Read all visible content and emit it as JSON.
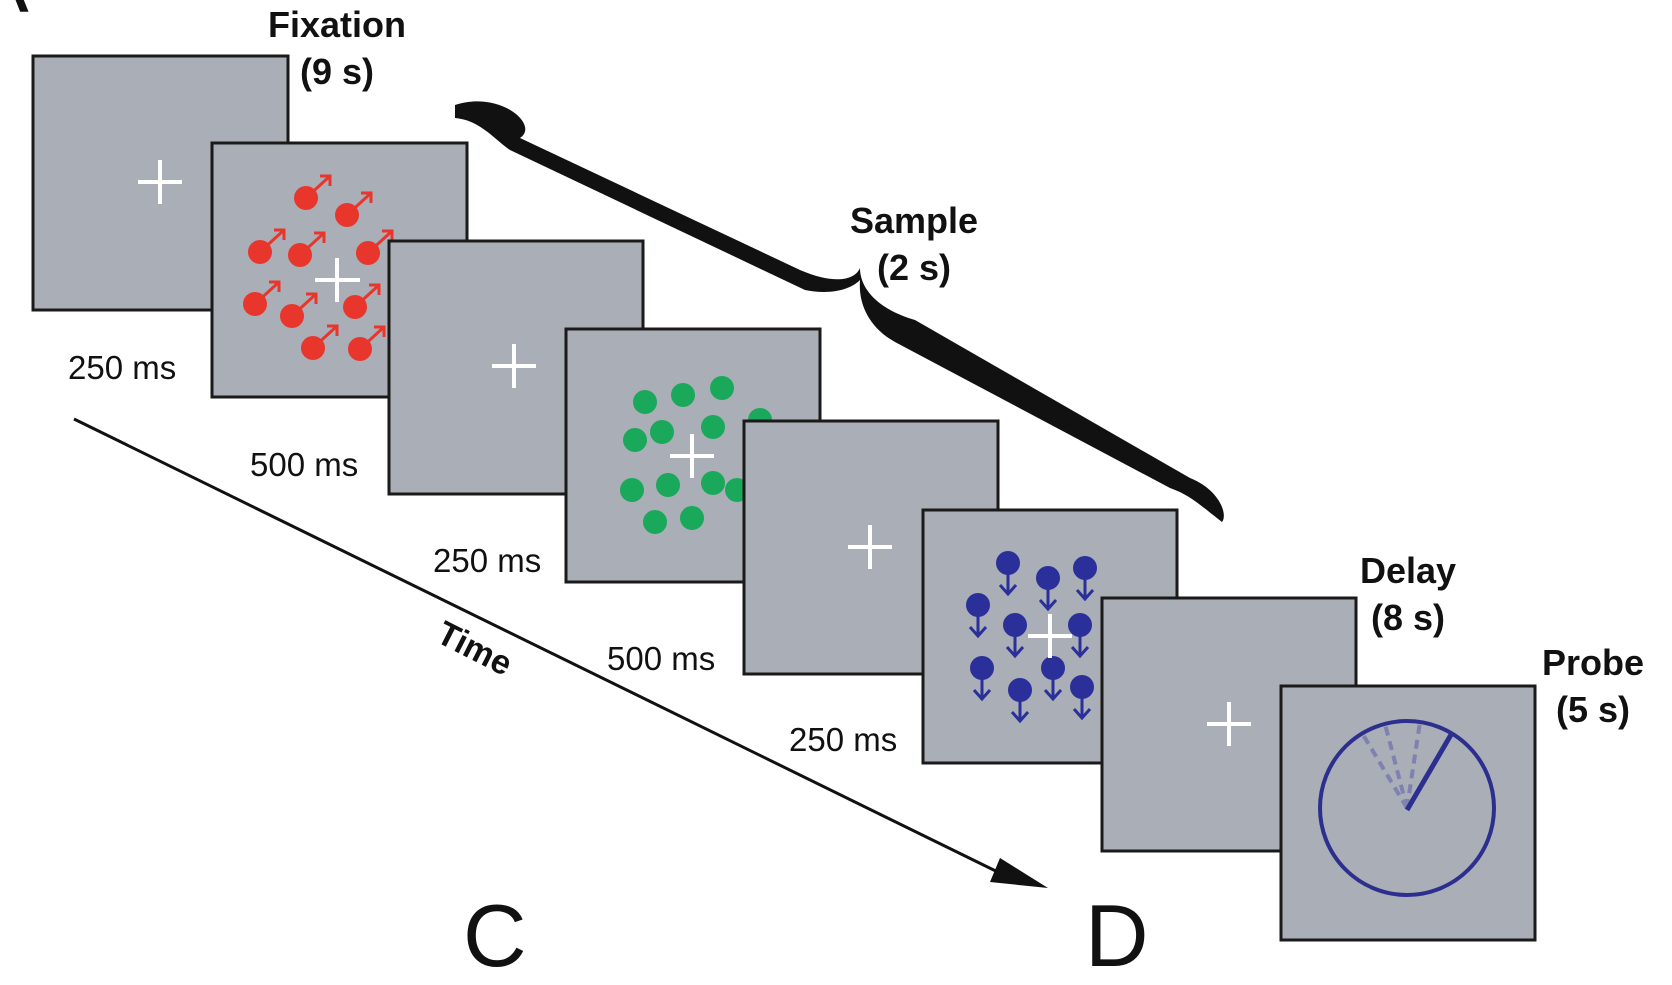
{
  "corner_letter": "A",
  "phases": {
    "fixation": {
      "name": "Fixation",
      "duration": "(9 s)"
    },
    "sample": {
      "name": "Sample",
      "duration": "(2 s)"
    },
    "delay": {
      "name": "Delay",
      "duration": "(8 s)"
    },
    "probe": {
      "name": "Probe",
      "duration": "(5 s)"
    }
  },
  "frame_durations": [
    "250 ms",
    "500 ms",
    "250 ms",
    "500 ms",
    "250 ms"
  ],
  "time_axis_label": "Time",
  "panel_letters": [
    "C",
    "D"
  ],
  "frames": [
    {
      "kind": "fixation-cross"
    },
    {
      "kind": "dots",
      "color": "red",
      "motion": "up-right"
    },
    {
      "kind": "fixation-cross"
    },
    {
      "kind": "dots",
      "color": "green",
      "motion": "none"
    },
    {
      "kind": "fixation-cross"
    },
    {
      "kind": "dots",
      "color": "blue",
      "motion": "down"
    },
    {
      "kind": "fixation-cross"
    },
    {
      "kind": "probe-dial"
    }
  ],
  "colors": {
    "screen": "#a9aeb7",
    "frame_border": "#1a1a1a",
    "fixation_cross": "#ffffff",
    "red_dots": "#e8362d",
    "green_dots": "#1aa85a",
    "blue_dots": "#2a2f9a",
    "probe_circle": "#2d2f8f"
  }
}
